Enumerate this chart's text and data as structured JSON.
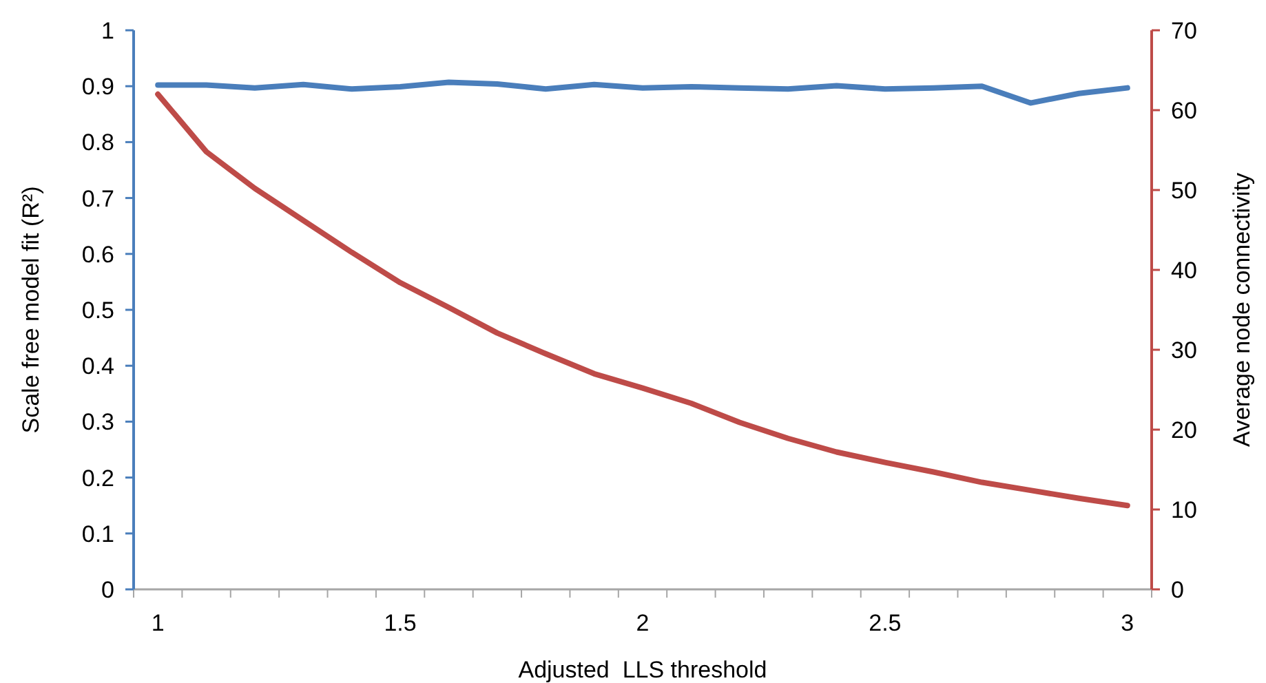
{
  "chart_data": {
    "type": "line",
    "xlabel": "Adjusted  LLS threshold",
    "ylabel": "Scale free model fit (R²)",
    "y2label": "Average node connectivity",
    "categories": [
      "1",
      null,
      null,
      null,
      null,
      "1.5",
      null,
      null,
      null,
      null,
      "2",
      null,
      null,
      null,
      null,
      "2.5",
      null,
      null,
      null,
      null,
      "3"
    ],
    "series": [
      {
        "color": "#4a7ebb",
        "values": [
          0.902,
          0.902,
          0.897,
          0.903,
          0.895,
          0.899,
          0.907,
          0.904,
          0.895,
          0.903,
          0.897,
          0.899,
          0.897,
          0.895,
          0.901,
          0.895,
          0.897,
          0.9,
          0.87,
          0.887,
          0.897
        ]
      },
      {
        "color": "#be4b48",
        "axis": "y2",
        "values": [
          62,
          54.8,
          50.2,
          46.2,
          42.2,
          38.4,
          35.3,
          32.1,
          29.5,
          27,
          25.2,
          23.3,
          20.9,
          18.9,
          17.2,
          15.9,
          14.7,
          13.4,
          12.4,
          11.4,
          10.5
        ]
      }
    ],
    "ylim": [
      0,
      1
    ],
    "yticks": [
      0,
      0.1,
      0.2,
      0.3,
      0.4,
      0.5,
      0.6,
      0.7,
      0.8,
      0.9,
      1
    ],
    "y2lim": [
      0,
      70
    ],
    "y2ticks": [
      0,
      10,
      20,
      30,
      40,
      50,
      60,
      70
    ],
    "grid": false,
    "marker": "none",
    "line_style": "solid"
  }
}
